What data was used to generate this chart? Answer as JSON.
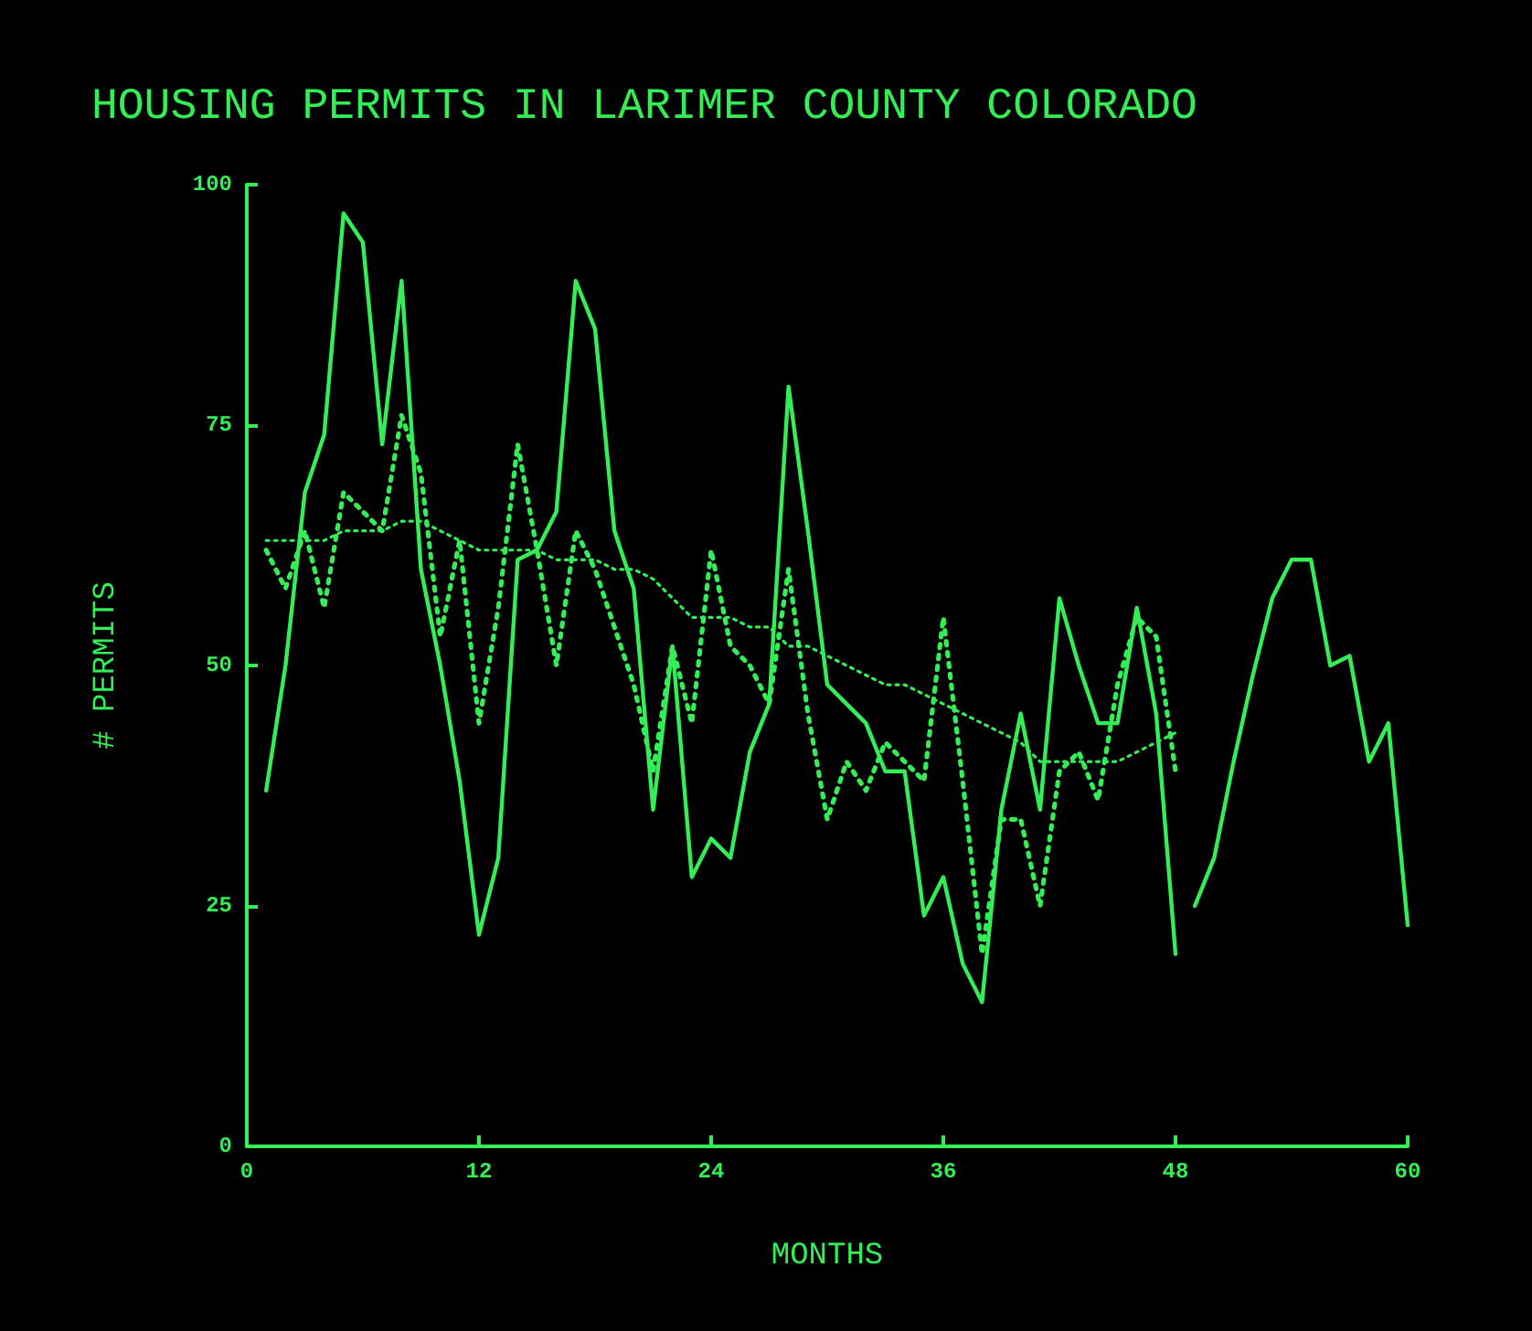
{
  "chart_data": {
    "type": "line",
    "title": "HOUSING PERMITS IN LARIMER COUNTY COLORADO",
    "xlabel": "MONTHS",
    "ylabel": "# PERMITS",
    "xlim": [
      0,
      60
    ],
    "xticks": [
      0,
      12,
      24,
      36,
      48,
      60
    ],
    "ylim": [
      0,
      100
    ],
    "yticks": [
      0,
      25,
      50,
      75,
      100
    ],
    "grid": false,
    "marker": "none",
    "series": [
      {
        "color": "#33ee55",
        "line_style": "solid",
        "x": [
          1,
          2,
          3,
          4,
          5,
          6,
          7,
          8,
          9,
          10,
          11,
          12,
          13,
          14,
          15,
          16,
          17,
          18,
          19,
          20,
          21,
          22,
          23,
          24,
          25,
          26,
          27,
          28,
          29,
          30,
          31,
          32,
          33,
          34,
          35,
          36,
          37,
          38,
          39,
          40,
          41,
          42,
          43,
          44,
          45,
          46,
          47,
          48
        ],
        "values": [
          37,
          50,
          68,
          74,
          97,
          94,
          73,
          90,
          60,
          50,
          38,
          22,
          30,
          61,
          62,
          66,
          90,
          85,
          64,
          58,
          35,
          52,
          28,
          32,
          30,
          41,
          46,
          79,
          64,
          48,
          46,
          44,
          39,
          39,
          24,
          28,
          19,
          15,
          35,
          45,
          35,
          57,
          50,
          44,
          44,
          56,
          45,
          20
        ]
      },
      {
        "color": "#33ee55",
        "line_style": "solid",
        "x": [
          49,
          50,
          51,
          52,
          53,
          54,
          55,
          56,
          57,
          58,
          59,
          60
        ],
        "values": [
          25,
          30,
          40,
          49,
          57,
          61,
          61,
          50,
          51,
          40,
          44,
          23
        ]
      },
      {
        "color": "#33ee55",
        "line_style": "dotted",
        "x": [
          1,
          2,
          3,
          4,
          5,
          6,
          7,
          8,
          9,
          10,
          11,
          12,
          13,
          14,
          15,
          16,
          17,
          18,
          19,
          20,
          21,
          22,
          23,
          24,
          25,
          26,
          27,
          28,
          29,
          30,
          31,
          32,
          33,
          34,
          35,
          36,
          37,
          38,
          39,
          40,
          41,
          42,
          43,
          44,
          45,
          46,
          47,
          48
        ],
        "values": [
          62,
          58,
          64,
          56,
          68,
          66,
          64,
          76,
          70,
          53,
          63,
          44,
          56,
          73,
          62,
          50,
          64,
          60,
          54,
          48,
          39,
          52,
          44,
          62,
          52,
          50,
          46,
          60,
          45,
          34,
          40,
          37,
          42,
          40,
          38,
          55,
          38,
          20,
          34,
          34,
          25,
          39,
          41,
          36,
          48,
          55,
          53,
          39
        ]
      },
      {
        "color": "#33ee55",
        "line_style": "fine",
        "x": [
          1,
          2,
          3,
          4,
          5,
          6,
          7,
          8,
          9,
          10,
          11,
          12,
          13,
          14,
          15,
          16,
          17,
          18,
          19,
          20,
          21,
          22,
          23,
          24,
          25,
          26,
          27,
          28,
          29,
          30,
          31,
          32,
          33,
          34,
          35,
          36,
          37,
          38,
          39,
          40,
          41,
          42,
          43,
          44,
          45,
          46,
          47,
          48
        ],
        "values": [
          63,
          63,
          63,
          63,
          64,
          64,
          64,
          65,
          65,
          64,
          63,
          62,
          62,
          62,
          62,
          61,
          61,
          61,
          60,
          60,
          59,
          57,
          55,
          55,
          55,
          54,
          54,
          52,
          52,
          51,
          50,
          49,
          48,
          48,
          47,
          46,
          45,
          44,
          43,
          42,
          40,
          40,
          40,
          40,
          40,
          41,
          42,
          43
        ]
      }
    ]
  }
}
